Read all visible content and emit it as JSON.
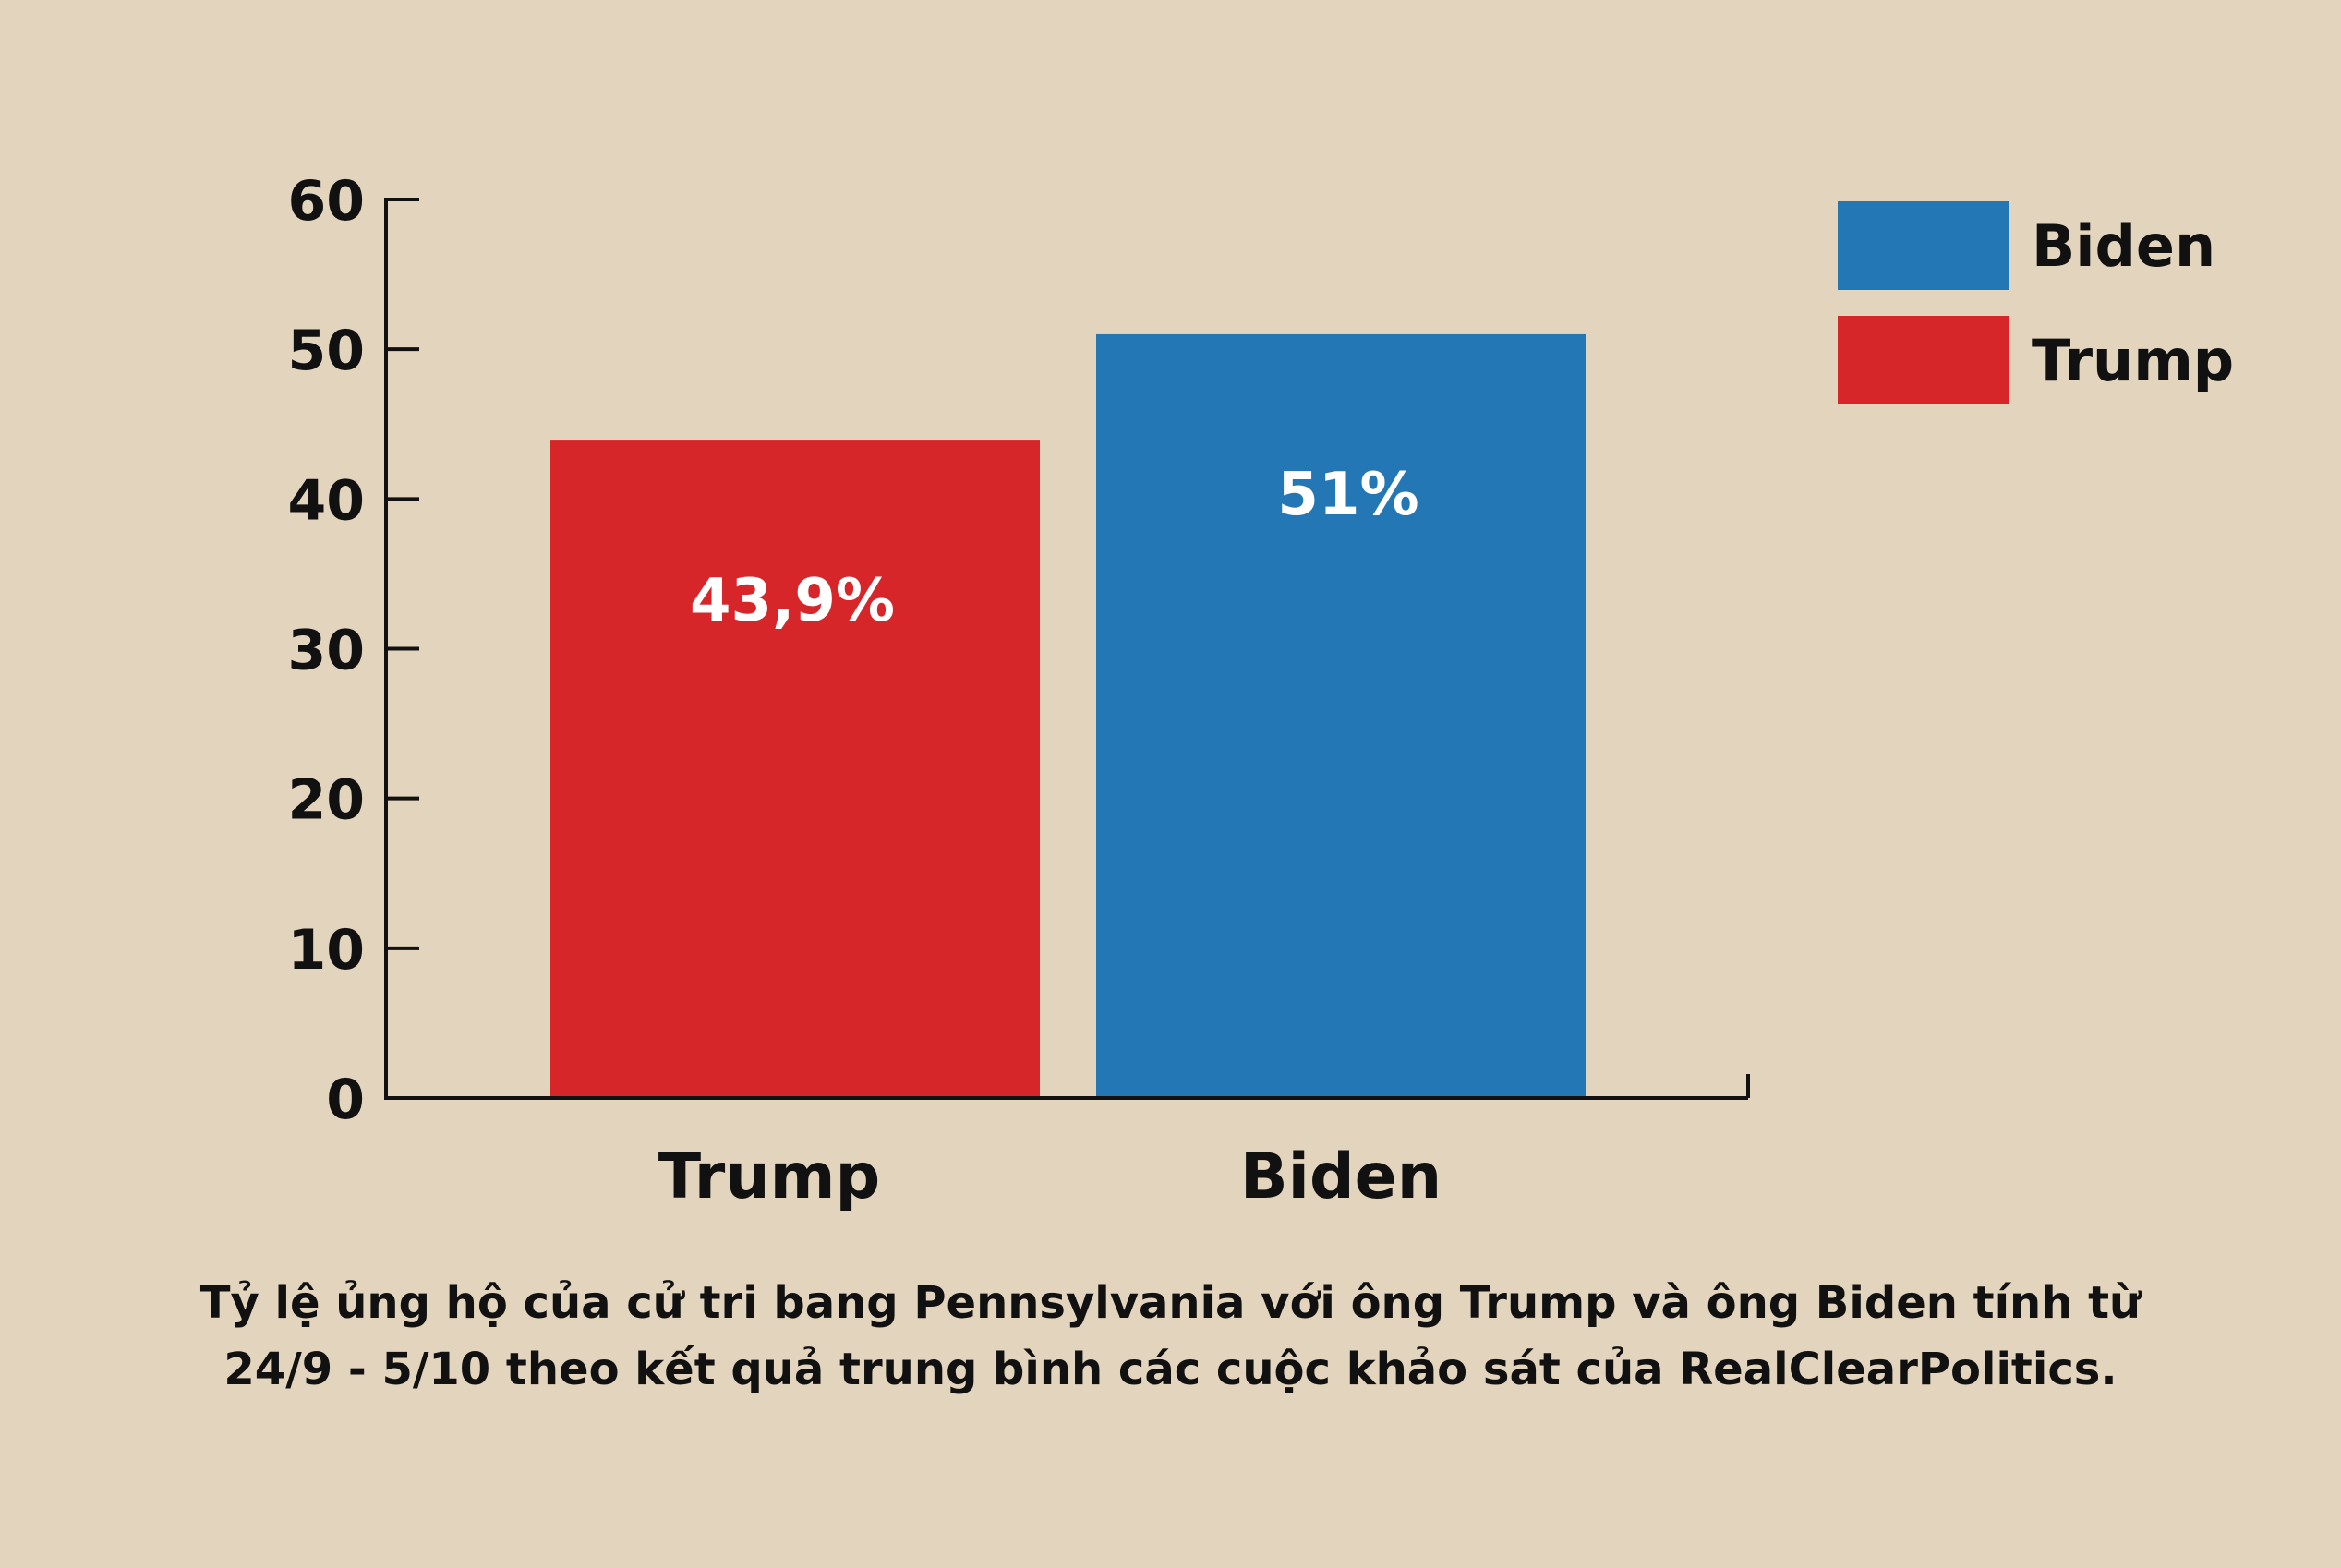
{
  "colors": {
    "background": "#e3d4bd",
    "Trump": "#d7262a",
    "Biden": "#2277b4",
    "text": "#111111",
    "data_label": "#ffffff"
  },
  "caption": {
    "line1": "Tỷ lệ ủng hộ của cử tri bang Pennsylvania với ông Trump và ông Biden tính từ",
    "line2": "24/9 - 5/10 theo kết quả trung bình các cuộc khảo sát của RealClearPolitics."
  },
  "chart_data": {
    "type": "bar",
    "categories": [
      "Trump",
      "Biden"
    ],
    "values": [
      43.9,
      51
    ],
    "data_labels": [
      "43,9%",
      "51%"
    ],
    "ylim": [
      0,
      60
    ],
    "yticks": [
      "0",
      "10",
      "20",
      "30",
      "40",
      "50",
      "60"
    ],
    "grid": false,
    "legend": {
      "placement": "top-right",
      "entries": [
        "Biden",
        "Trump"
      ]
    }
  }
}
